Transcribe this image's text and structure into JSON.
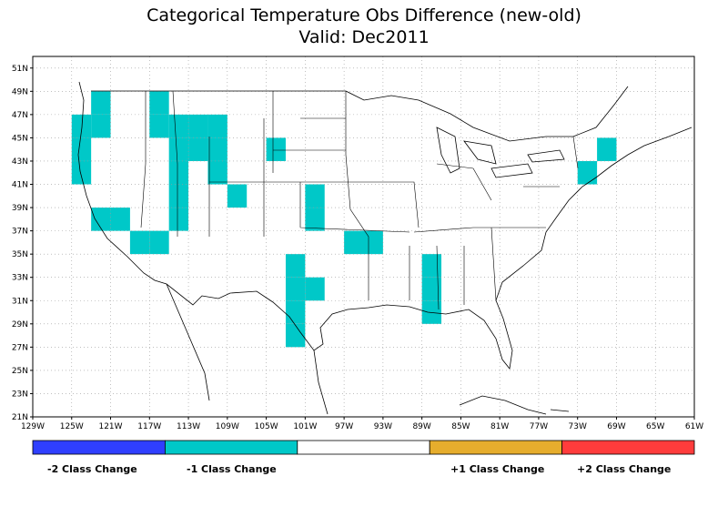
{
  "title": "Categorical Temperature Obs Difference (new-old)",
  "subtitle": "Valid: Dec2011",
  "lat_ticks": [
    "51N",
    "49N",
    "47N",
    "45N",
    "43N",
    "41N",
    "39N",
    "37N",
    "35N",
    "33N",
    "31N",
    "29N",
    "27N",
    "25N",
    "23N",
    "21N"
  ],
  "lon_ticks": [
    "129W",
    "125W",
    "121W",
    "117W",
    "113W",
    "109W",
    "105W",
    "101W",
    "97W",
    "93W",
    "89W",
    "85W",
    "81W",
    "77W",
    "73W",
    "69W",
    "65W",
    "61W"
  ],
  "map_extent": {
    "lon_min": -129,
    "lon_max": -61,
    "lat_min": 21,
    "lat_max": 52
  },
  "legend": [
    {
      "label": "-2 Class Change",
      "color": "#2f3fff"
    },
    {
      "label": "-1 Class Change",
      "color": "#00c8c8"
    },
    {
      "label": "",
      "color": "#ffffff"
    },
    {
      "label": "+1 Class Change",
      "color": "#e6ad2d"
    },
    {
      "label": "+2 Class Change",
      "color": "#ff3c3c"
    }
  ],
  "changed_cells": {
    "class_change": -1,
    "cell_size_deg": 2,
    "color": "#00c8c8",
    "cells_lon_lat": [
      [
        -122,
        48
      ],
      [
        -124,
        46
      ],
      [
        -122,
        46
      ],
      [
        -124,
        44
      ],
      [
        -124,
        42
      ],
      [
        -116,
        48
      ],
      [
        -116,
        46
      ],
      [
        -114,
        46
      ],
      [
        -112,
        46
      ],
      [
        -110,
        46
      ],
      [
        -114,
        44
      ],
      [
        -112,
        44
      ],
      [
        -110,
        44
      ],
      [
        -110,
        42
      ],
      [
        -108,
        40
      ],
      [
        -104,
        44
      ],
      [
        -114,
        40
      ],
      [
        -114,
        42
      ],
      [
        -114,
        38
      ],
      [
        -122,
        38
      ],
      [
        -120,
        38
      ],
      [
        -118,
        36
      ],
      [
        -116,
        36
      ],
      [
        -100,
        40
      ],
      [
        -100,
        38
      ],
      [
        -96,
        36
      ],
      [
        -94,
        36
      ],
      [
        -102,
        34
      ],
      [
        -102,
        32
      ],
      [
        -100,
        32
      ],
      [
        -102,
        30
      ],
      [
        -102,
        28
      ],
      [
        -88,
        34
      ],
      [
        -88,
        32
      ],
      [
        -88,
        30
      ],
      [
        -70,
        44
      ],
      [
        -72,
        42
      ]
    ]
  }
}
